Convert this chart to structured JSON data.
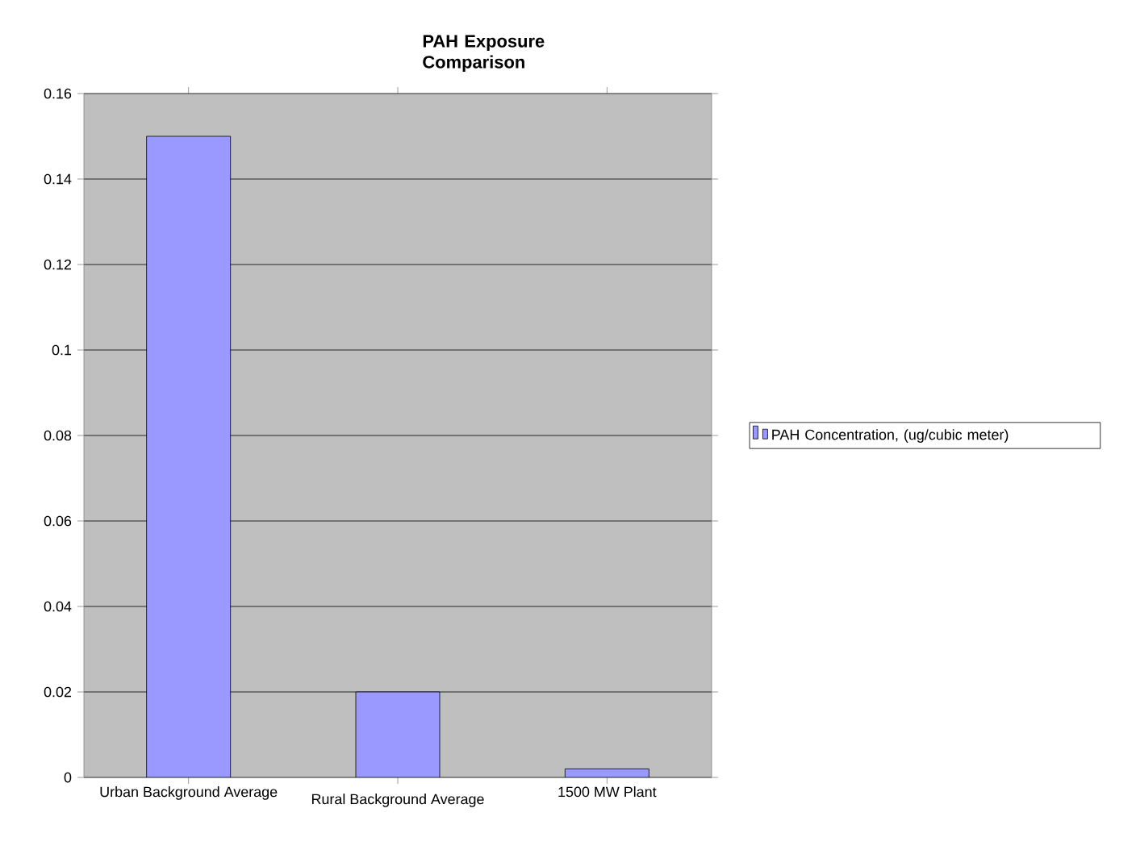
{
  "chart_data": {
    "type": "bar",
    "title": "PAH Exposure Comparison",
    "categories": [
      "Urban Background Average",
      "Rural Background Average",
      "1500 MW Plant"
    ],
    "series": [
      {
        "name": "PAH Concentration, (ug/cubic meter)",
        "color": "#9999ff",
        "values": [
          0.15,
          0.02,
          0.002
        ]
      }
    ],
    "ylim": [
      0,
      0.16
    ],
    "yticks": [
      0,
      0.02,
      0.04,
      0.06,
      0.08,
      0.1,
      0.12,
      0.14,
      0.16
    ],
    "grid": "y",
    "legend": "right"
  }
}
